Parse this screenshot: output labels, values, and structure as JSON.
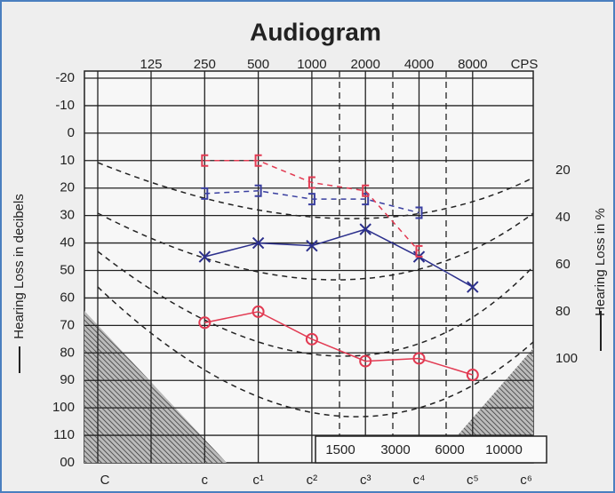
{
  "chart_data": {
    "type": "line",
    "title": "Audiogram",
    "categories": [
      125,
      250,
      500,
      1000,
      2000,
      4000,
      8000
    ],
    "x_unit": "CPS",
    "note_names": [
      "C",
      "c",
      "c¹",
      "c²",
      "c³",
      "c⁴",
      "c⁵",
      "c⁶"
    ],
    "intermediate_frequencies": [
      1500,
      3000,
      6000,
      10000
    ],
    "ylabel": "Hearing Loss in decibels",
    "y2label": "Hearing Loss in %",
    "ylim": [
      -20,
      120
    ],
    "yticks": [
      -20,
      -10,
      0,
      10,
      20,
      30,
      40,
      50,
      60,
      70,
      80,
      90,
      100,
      110,
      {
        "value": 120,
        "label": "00"
      }
    ],
    "y2ticks": [
      20,
      40,
      60,
      80,
      100
    ],
    "grid": true,
    "series": [
      {
        "color": "#2b2f8c",
        "marker": "x",
        "dash": false,
        "values": [
          null,
          45,
          40,
          41,
          35,
          45,
          56
        ]
      },
      {
        "color": "#e23a52",
        "marker": "o",
        "dash": false,
        "values": [
          null,
          69,
          65,
          75,
          83,
          82,
          88
        ]
      },
      {
        "color": "#3a3fa0",
        "marker": "]",
        "dash": true,
        "values": [
          null,
          22,
          21,
          24,
          24,
          29,
          null
        ]
      },
      {
        "color": "#e23a52",
        "marker": "[",
        "dash": true,
        "values": [
          null,
          10,
          10,
          18,
          21,
          43,
          null
        ]
      }
    ]
  }
}
